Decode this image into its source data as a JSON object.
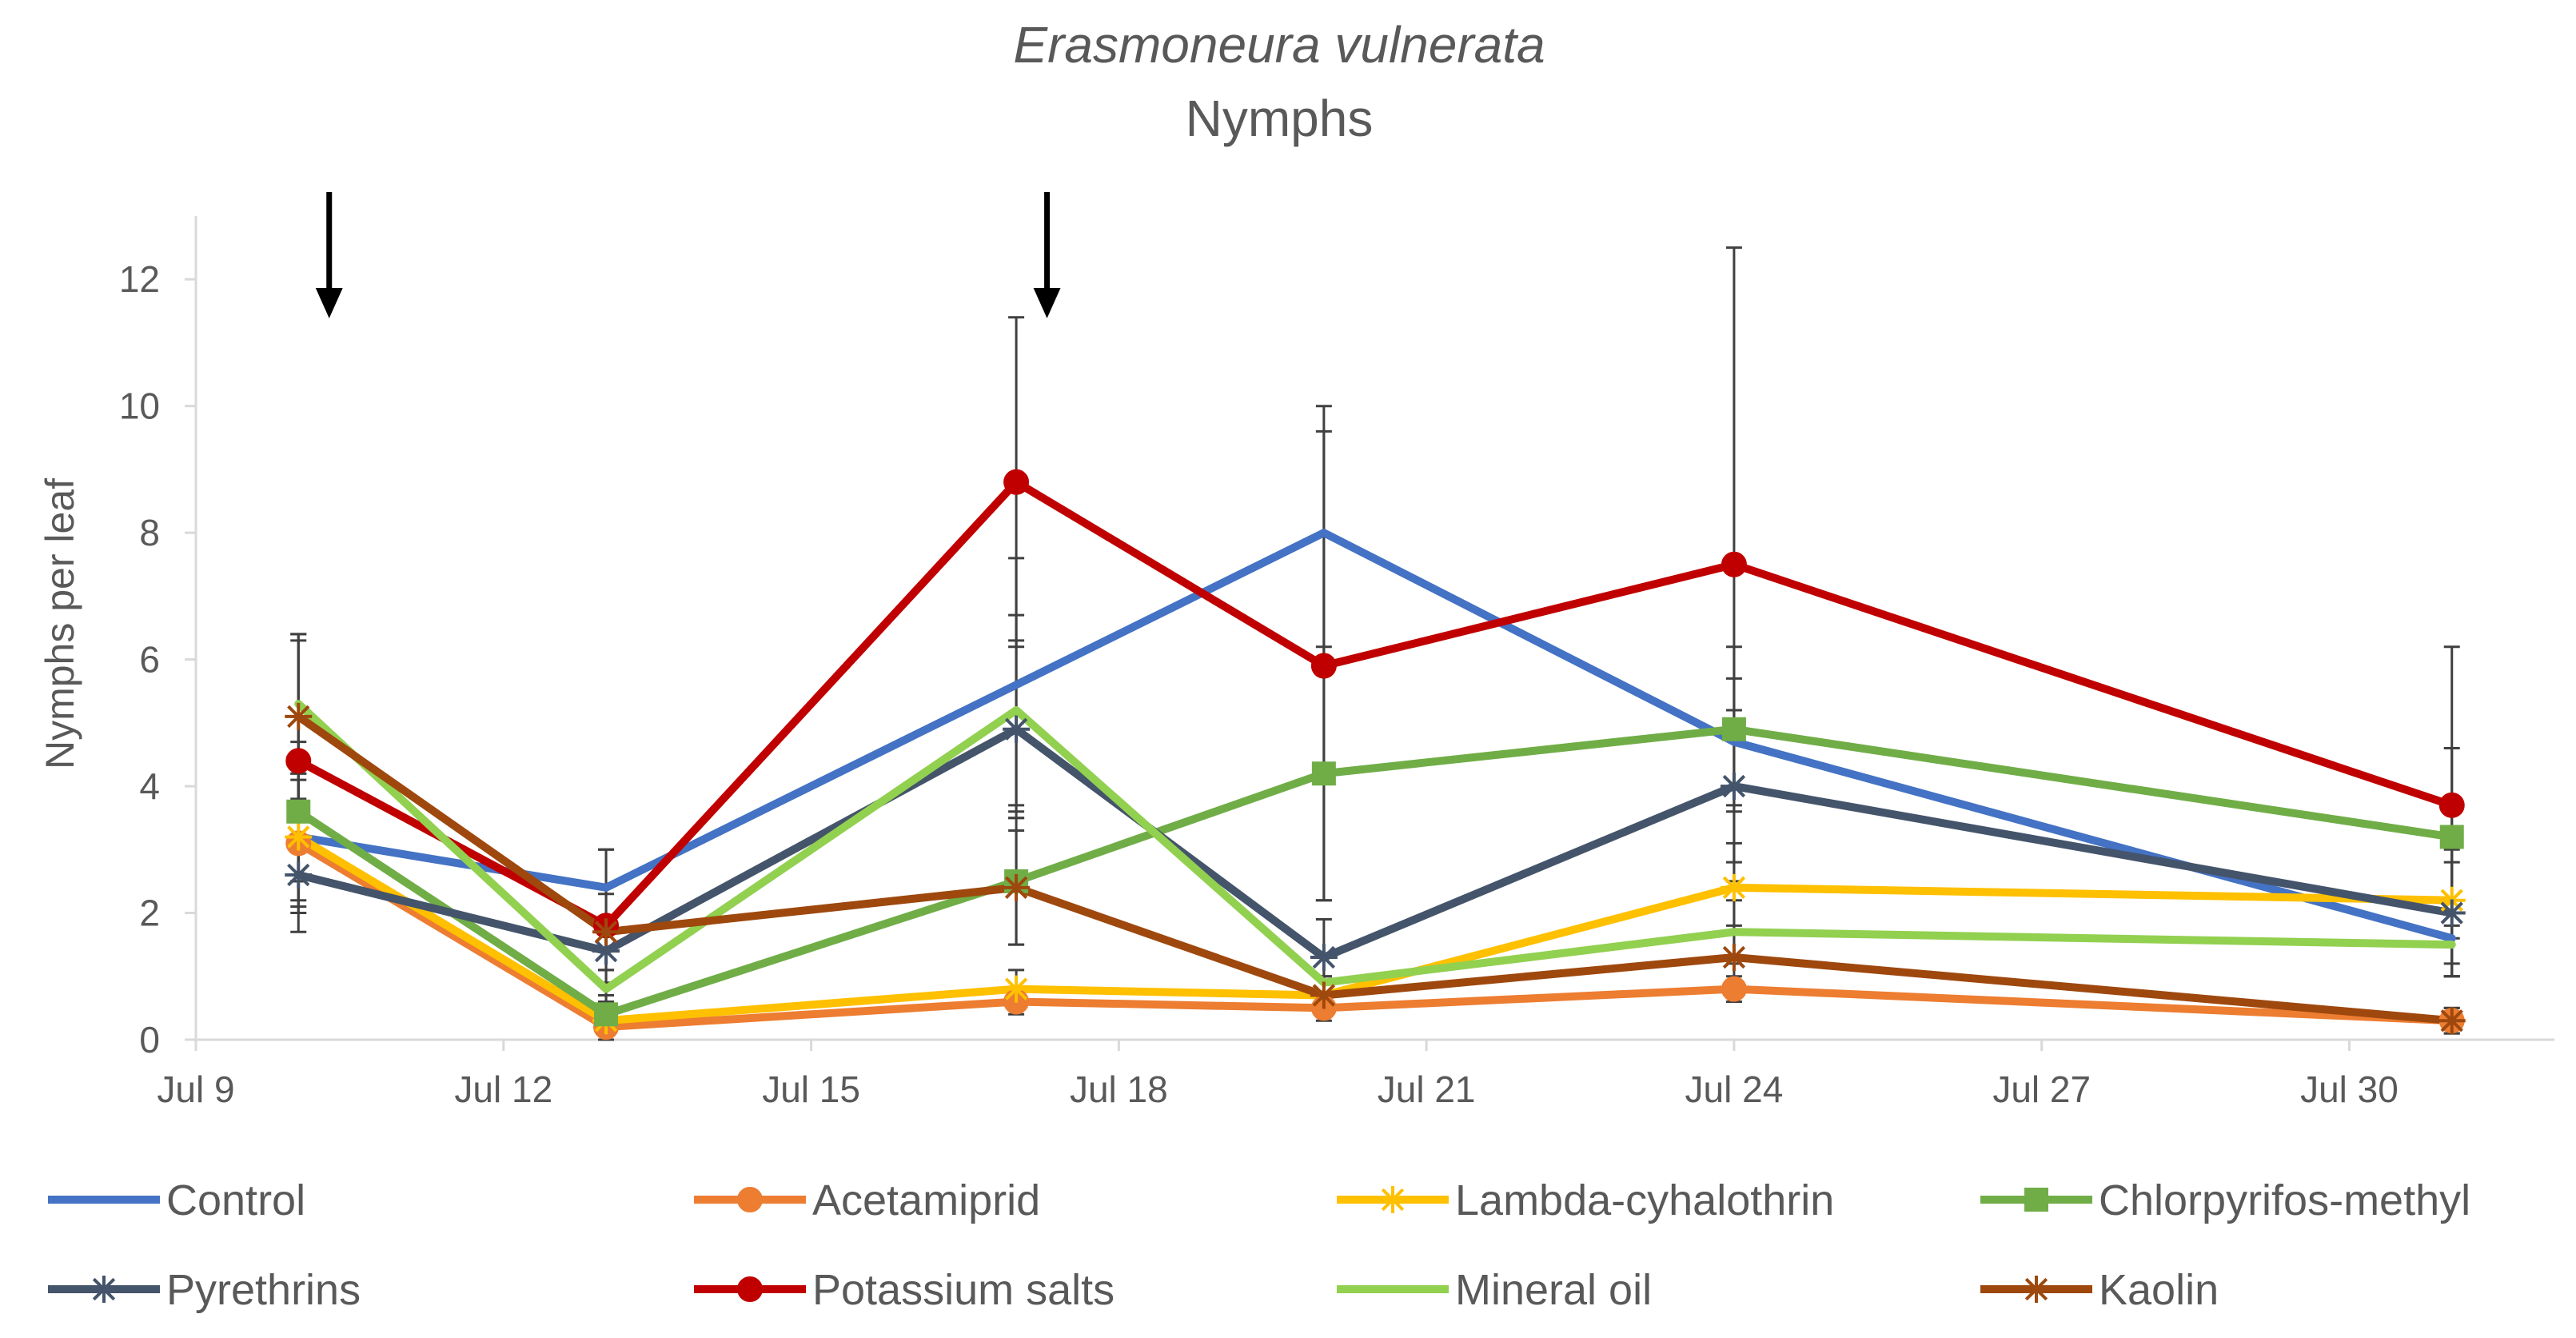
{
  "chart_data": {
    "type": "line",
    "title": "Erasmoneura vulnerata",
    "subtitle": "Nymphs",
    "xlabel": "",
    "ylabel": "Nymphs per leaf",
    "ylim": [
      0,
      13
    ],
    "y_ticks": [
      0,
      2,
      4,
      6,
      8,
      10,
      12
    ],
    "x_range_days": [
      9,
      32
    ],
    "x_ticks": [
      {
        "day": 9,
        "label": "Jul 9"
      },
      {
        "day": 12,
        "label": "Jul 12"
      },
      {
        "day": 15,
        "label": "Jul 15"
      },
      {
        "day": 18,
        "label": "Jul 18"
      },
      {
        "day": 21,
        "label": "Jul 21"
      },
      {
        "day": 24,
        "label": "Jul 24"
      },
      {
        "day": 27,
        "label": "Jul 27"
      },
      {
        "day": 30,
        "label": "Jul 30"
      }
    ],
    "x": [
      10,
      13,
      17,
      20,
      24,
      31
    ],
    "application_arrows_days": [
      10.3,
      17.3
    ],
    "series": [
      {
        "name": "Control",
        "color": "#4472C4",
        "marker": "none",
        "values": [
          3.2,
          2.4,
          5.6,
          8.0,
          4.7,
          1.6
        ],
        "err": [
          1.2,
          0.6,
          2.0,
          2.0,
          1.0,
          0.6
        ]
      },
      {
        "name": "Acetamiprid",
        "color": "#ED7D31",
        "marker": "circle",
        "values": [
          3.1,
          0.2,
          0.6,
          0.5,
          0.8,
          0.3
        ],
        "err": [
          1.0,
          0.2,
          0.2,
          0.2,
          0.2,
          0.2
        ]
      },
      {
        "name": "Lambda-cyhalothrin",
        "color": "#FFC000",
        "marker": "star",
        "values": [
          3.2,
          0.3,
          0.8,
          0.7,
          2.4,
          2.2
        ],
        "err": [
          1.0,
          0.2,
          0.3,
          0.3,
          0.7,
          0.6
        ]
      },
      {
        "name": "Chlorpyrifos-methyl",
        "color": "#70AD47",
        "marker": "square",
        "values": [
          3.6,
          0.4,
          2.5,
          4.2,
          4.9,
          3.2
        ],
        "err": [
          1.1,
          0.3,
          1.0,
          2.0,
          1.3,
          1.4
        ]
      },
      {
        "name": "Pyrethrins",
        "color": "#44546A",
        "marker": "star",
        "values": [
          2.6,
          1.4,
          4.9,
          1.3,
          4.0,
          2.0
        ],
        "err": [
          0.9,
          0.5,
          1.4,
          0.6,
          1.2,
          1.0
        ]
      },
      {
        "name": "Potassium salts",
        "color": "#C00000",
        "marker": "circle",
        "values": [
          4.4,
          1.8,
          8.8,
          5.9,
          7.5,
          3.7
        ],
        "err": [
          1.9,
          1.2,
          2.6,
          3.7,
          5.0,
          2.5
        ]
      },
      {
        "name": "Mineral oil",
        "color": "#92D050",
        "marker": "none",
        "values": [
          5.3,
          0.8,
          5.2,
          0.9,
          1.7,
          1.5
        ],
        "err": [
          1.1,
          0.3,
          1.5,
          0.4,
          0.5,
          0.5
        ]
      },
      {
        "name": "Kaolin",
        "color": "#9E480E",
        "marker": "star",
        "values": [
          5.1,
          1.7,
          2.4,
          0.7,
          1.3,
          0.3
        ],
        "err": [
          1.3,
          0.6,
          0.9,
          0.3,
          0.5,
          0.2
        ]
      }
    ]
  }
}
